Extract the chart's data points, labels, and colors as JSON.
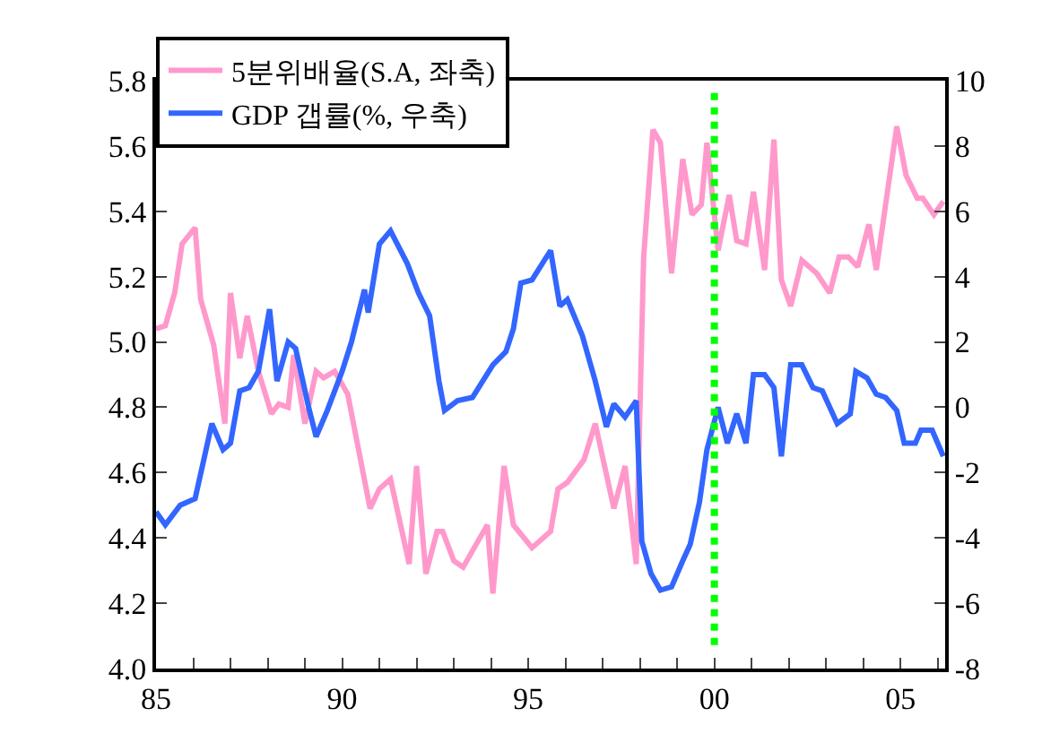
{
  "chart_data": {
    "type": "line",
    "series": [
      {
        "name": "5분위배율(S.A, 좌축)",
        "color": "#ff99cc",
        "axis": "y",
        "x": [
          1985.0,
          1985.25,
          1985.5,
          1985.7,
          1986.05,
          1986.2,
          1986.55,
          1986.85,
          1987.0,
          1987.25,
          1987.45,
          1987.75,
          1988.1,
          1988.3,
          1988.55,
          1988.7,
          1989.0,
          1989.3,
          1989.5,
          1989.8,
          1990.15,
          1990.75,
          1991.0,
          1991.3,
          1991.8,
          1992.0,
          1992.25,
          1992.55,
          1992.7,
          1993.0,
          1993.25,
          1993.9,
          1994.05,
          1994.35,
          1994.6,
          1995.1,
          1995.6,
          1995.8,
          1996.05,
          1996.5,
          1996.8,
          1997.3,
          1997.6,
          1997.9,
          1998.1,
          1998.35,
          1998.55,
          1998.85,
          1999.15,
          1999.4,
          1999.65,
          1999.8,
          2000.1,
          2000.4,
          2000.6,
          2000.85,
          2001.05,
          2001.35,
          2001.6,
          2001.8,
          2002.05,
          2002.35,
          2002.75,
          2003.1,
          2003.35,
          2003.6,
          2003.85,
          2004.15,
          2004.35,
          2004.9,
          2005.15,
          2005.45,
          2005.6,
          2005.9,
          2006.15
        ],
        "values": [
          5.04,
          5.05,
          5.15,
          5.3,
          5.35,
          5.13,
          4.99,
          4.75,
          5.15,
          4.95,
          5.08,
          4.91,
          4.78,
          4.81,
          4.8,
          4.96,
          4.75,
          4.91,
          4.89,
          4.91,
          4.84,
          4.49,
          4.55,
          4.58,
          4.32,
          4.62,
          4.29,
          4.42,
          4.42,
          4.33,
          4.31,
          4.44,
          4.23,
          4.62,
          4.44,
          4.37,
          4.42,
          4.55,
          4.57,
          4.64,
          4.75,
          4.49,
          4.62,
          4.32,
          5.26,
          5.65,
          5.61,
          5.21,
          5.56,
          5.39,
          5.42,
          5.61,
          5.28,
          5.45,
          5.31,
          5.3,
          5.46,
          5.22,
          5.62,
          5.19,
          5.11,
          5.25,
          5.21,
          5.15,
          5.26,
          5.26,
          5.23,
          5.36,
          5.22,
          5.66,
          5.51,
          5.44,
          5.44,
          5.39,
          5.43
        ]
      },
      {
        "name": "GDP 갭률(%, 우축)",
        "color": "#3366ff",
        "axis": "y2",
        "x": [
          1985.0,
          1985.25,
          1985.65,
          1986.05,
          1986.5,
          1986.8,
          1987.0,
          1987.25,
          1987.5,
          1987.75,
          1988.05,
          1988.25,
          1988.55,
          1988.75,
          1989.1,
          1989.3,
          1989.6,
          1990.0,
          1990.25,
          1990.6,
          1990.7,
          1991.0,
          1991.3,
          1991.75,
          1992.05,
          1992.35,
          1992.6,
          1992.75,
          1993.1,
          1993.5,
          1994.05,
          1994.4,
          1994.6,
          1994.8,
          1995.1,
          1995.6,
          1995.85,
          1996.05,
          1996.45,
          1996.8,
          1997.1,
          1997.3,
          1997.6,
          1997.9,
          1998.05,
          1998.3,
          1998.55,
          1998.85,
          1999.15,
          1999.35,
          1999.6,
          1999.8,
          2000.1,
          2000.35,
          2000.6,
          2000.85,
          2001.05,
          2001.35,
          2001.6,
          2001.8,
          2002.05,
          2002.35,
          2002.65,
          2002.9,
          2003.3,
          2003.65,
          2003.8,
          2004.1,
          2004.35,
          2004.6,
          2004.9,
          2005.1,
          2005.4,
          2005.55,
          2005.85,
          2006.15
        ],
        "values": [
          -3.2,
          -3.6,
          -3.0,
          -2.8,
          -0.5,
          -1.3,
          -1.1,
          0.5,
          0.6,
          1.1,
          3.0,
          0.8,
          2.0,
          1.8,
          0.0,
          -0.9,
          -0.1,
          1.1,
          2.0,
          3.6,
          2.9,
          5.0,
          5.4,
          4.4,
          3.5,
          2.8,
          0.8,
          -0.1,
          0.2,
          0.3,
          1.3,
          1.7,
          2.4,
          3.8,
          3.9,
          4.8,
          3.1,
          3.3,
          2.2,
          0.8,
          -0.6,
          0.1,
          -0.3,
          0.2,
          -4.1,
          -5.1,
          -5.6,
          -5.5,
          -4.7,
          -4.2,
          -2.9,
          -1.3,
          0.0,
          -1.1,
          -0.2,
          -1.1,
          1.0,
          1.0,
          0.6,
          -1.5,
          1.3,
          1.3,
          0.6,
          0.5,
          -0.5,
          -0.2,
          1.1,
          0.9,
          0.4,
          0.3,
          -0.1,
          -1.1,
          -1.1,
          -0.7,
          -0.7,
          -1.5
        ]
      }
    ],
    "xlim": [
      1985,
      2006.2
    ],
    "xticks": [
      {
        "value": 1985,
        "label": "85"
      },
      {
        "value": 1986,
        "label": null
      },
      {
        "value": 1987,
        "label": null
      },
      {
        "value": 1988,
        "label": null
      },
      {
        "value": 1989,
        "label": null
      },
      {
        "value": 1990,
        "label": "90"
      },
      {
        "value": 1991,
        "label": null
      },
      {
        "value": 1992,
        "label": null
      },
      {
        "value": 1993,
        "label": null
      },
      {
        "value": 1994,
        "label": null
      },
      {
        "value": 1995,
        "label": "95"
      },
      {
        "value": 1996,
        "label": null
      },
      {
        "value": 1997,
        "label": null
      },
      {
        "value": 1998,
        "label": null
      },
      {
        "value": 1999,
        "label": null
      },
      {
        "value": 2000,
        "label": "00"
      },
      {
        "value": 2001,
        "label": null
      },
      {
        "value": 2002,
        "label": null
      },
      {
        "value": 2003,
        "label": null
      },
      {
        "value": 2004,
        "label": null
      },
      {
        "value": 2005,
        "label": "05"
      },
      {
        "value": 2006,
        "label": null
      }
    ],
    "ylim": [
      4.0,
      5.8
    ],
    "yticks": [
      {
        "value": 4.0,
        "label": "4.0"
      },
      4.2,
      4.4,
      4.6,
      4.8,
      {
        "value": 5.0,
        "label": "5.0"
      },
      5.2,
      5.4,
      5.6,
      5.8
    ],
    "y2lim": [
      -8,
      10
    ],
    "y2ticks": [
      -8,
      -6,
      -4,
      -2,
      0,
      2,
      4,
      6,
      8,
      10
    ],
    "ref_lines": [
      {
        "axis": "x",
        "value": 2000,
        "color": "#00ff00",
        "line_style": "dotted"
      }
    ],
    "legend": "top left",
    "line_style": "solid",
    "marker": "none"
  }
}
